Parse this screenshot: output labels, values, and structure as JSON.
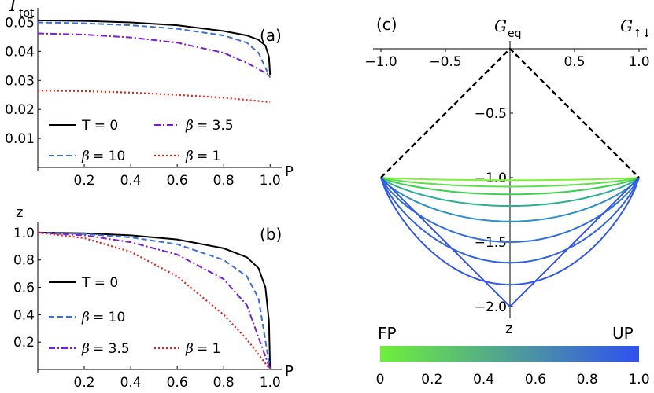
{
  "chart_data": [
    {
      "type": "line",
      "panel": "(a)",
      "ylabel_main": "I",
      "ylabel_sub": "tot",
      "xlabel": "P",
      "xlim": [
        0,
        1.05
      ],
      "ylim": [
        0,
        0.055
      ],
      "xticks": [
        "0.2",
        "0.4",
        "0.6",
        "0.8",
        "1.0"
      ],
      "yticks": [
        "0.01",
        "0.02",
        "0.03",
        "0.04",
        "0.05"
      ],
      "legend": {
        "T0": "T = 0",
        "b35_val": "= 3.5",
        "b10_val": "= 10",
        "b1_val": "= 1"
      },
      "series": [
        {
          "name": "T = 0",
          "color": "#000000",
          "style": "solid",
          "points": [
            [
              0,
              0.0507
            ],
            [
              0.2,
              0.0505
            ],
            [
              0.4,
              0.05
            ],
            [
              0.6,
              0.049
            ],
            [
              0.8,
              0.047
            ],
            [
              0.9,
              0.0455
            ],
            [
              0.95,
              0.044
            ],
            [
              0.98,
              0.042
            ],
            [
              0.995,
              0.038
            ],
            [
              1.0,
              0.032
            ]
          ]
        },
        {
          "name": "β = 10",
          "color": "#3a6fe0",
          "style": "dashed",
          "points": [
            [
              0,
              0.05
            ],
            [
              0.2,
              0.0497
            ],
            [
              0.4,
              0.049
            ],
            [
              0.6,
              0.0478
            ],
            [
              0.8,
              0.0455
            ],
            [
              0.9,
              0.043
            ],
            [
              0.95,
              0.0395
            ],
            [
              1.0,
              0.031
            ]
          ]
        },
        {
          "name": "β = 3.5",
          "color": "#7a1fd6",
          "style": "dashdot",
          "points": [
            [
              0,
              0.0462
            ],
            [
              0.2,
              0.0458
            ],
            [
              0.4,
              0.0448
            ],
            [
              0.6,
              0.043
            ],
            [
              0.8,
              0.0395
            ],
            [
              0.9,
              0.036
            ],
            [
              1.0,
              0.0318
            ]
          ]
        },
        {
          "name": "β = 1",
          "color": "#e8211a",
          "style": "dotted",
          "points": [
            [
              0,
              0.0265
            ],
            [
              0.2,
              0.0263
            ],
            [
              0.4,
              0.0258
            ],
            [
              0.6,
              0.025
            ],
            [
              0.8,
              0.024
            ],
            [
              1.0,
              0.0225
            ]
          ]
        }
      ]
    },
    {
      "type": "line",
      "panel": "(b)",
      "ylabel": "z",
      "xlabel": "P",
      "xlim": [
        0,
        1.05
      ],
      "ylim": [
        0,
        1.08
      ],
      "xticks": [
        "0.2",
        "0.4",
        "0.6",
        "0.8",
        "1.0"
      ],
      "yticks": [
        "0.2",
        "0.4",
        "0.6",
        "0.8",
        "1.0"
      ],
      "legend": {
        "T0": "T = 0",
        "b10_val": "= 10",
        "b35_val": "= 3.5",
        "b1_val": "= 1"
      },
      "series": [
        {
          "name": "T = 0",
          "color": "#000000",
          "style": "solid",
          "points": [
            [
              0,
              1
            ],
            [
              0.2,
              0.995
            ],
            [
              0.4,
              0.98
            ],
            [
              0.6,
              0.95
            ],
            [
              0.8,
              0.885
            ],
            [
              0.9,
              0.82
            ],
            [
              0.95,
              0.74
            ],
            [
              0.98,
              0.6
            ],
            [
              0.995,
              0.35
            ],
            [
              1.0,
              0
            ]
          ]
        },
        {
          "name": "β = 10",
          "color": "#3a6fe0",
          "style": "dashed",
          "points": [
            [
              0,
              1
            ],
            [
              0.2,
              0.99
            ],
            [
              0.4,
              0.965
            ],
            [
              0.6,
              0.915
            ],
            [
              0.8,
              0.8
            ],
            [
              0.9,
              0.68
            ],
            [
              0.95,
              0.52
            ],
            [
              1.0,
              0
            ]
          ]
        },
        {
          "name": "β = 3.5",
          "color": "#7a1fd6",
          "style": "dashdot",
          "points": [
            [
              0,
              1
            ],
            [
              0.2,
              0.98
            ],
            [
              0.4,
              0.93
            ],
            [
              0.6,
              0.84
            ],
            [
              0.8,
              0.66
            ],
            [
              0.9,
              0.47
            ],
            [
              1.0,
              0
            ]
          ]
        },
        {
          "name": "β = 1",
          "color": "#e8211a",
          "style": "dotted",
          "points": [
            [
              0,
              1
            ],
            [
              0.2,
              0.96
            ],
            [
              0.4,
              0.86
            ],
            [
              0.6,
              0.68
            ],
            [
              0.8,
              0.4
            ],
            [
              0.9,
              0.22
            ],
            [
              1.0,
              0
            ]
          ]
        }
      ]
    },
    {
      "type": "line",
      "panel": "(c)",
      "top_label_main": "G",
      "top_label_sub": "eq",
      "right_label_main": "G",
      "right_label_sub": "↑↓",
      "ylabel": "z",
      "xlim": [
        -1.05,
        1.05
      ],
      "ylim": [
        -2.05,
        0.05
      ],
      "xticks": [
        "−1.0",
        "−0.5",
        "0.5",
        "1.0"
      ],
      "yticks": [
        "−0.5",
        "−1.0",
        "−1.5",
        "−2.0"
      ],
      "boundary_color": "#000000",
      "curve_minima": [
        -1.02,
        -1.07,
        -1.13,
        -1.22,
        -1.34,
        -1.5,
        -1.66,
        -1.83,
        -2.0
      ],
      "curve_colors": [
        "#7ff03a",
        "#5ee04a",
        "#3cd150",
        "#2ab090",
        "#2a90c8",
        "#2f70e0",
        "#3060ea",
        "#3256f0",
        "#3350f2"
      ],
      "colorbar": {
        "left_label": "FP",
        "right_label": "UP",
        "ticks": [
          "0",
          "0.2",
          "0.4",
          "0.6",
          "0.8",
          "1.0"
        ],
        "color_start": "#6ef03a",
        "color_end": "#3050f0"
      }
    }
  ]
}
